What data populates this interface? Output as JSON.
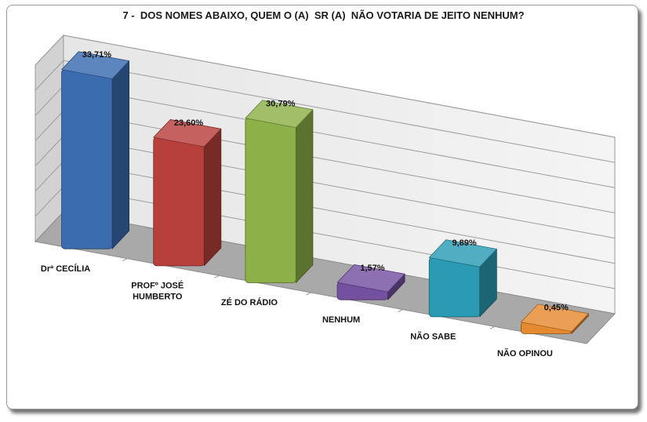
{
  "chart_data": {
    "type": "bar",
    "title": "7 -  DOS NOMES ABAIXO, QUEM O (A)  SR (A)  NÃO VOTARIA DE JEITO NENHUM?",
    "categories": [
      [
        "Drª CECÍLIA"
      ],
      [
        "PROFº JOSÉ",
        "HUMBERTO"
      ],
      [
        "ZÉ DO RÁDIO"
      ],
      [
        "NENHUM"
      ],
      [
        "NÃO SABE"
      ],
      [
        "NÃO OPINOU"
      ]
    ],
    "values": [
      33.71,
      23.6,
      30.79,
      1.57,
      9.89,
      0.45
    ],
    "data_labels": [
      "33,71%",
      "23,60%",
      "30,79%",
      "1,57%",
      "9,89%",
      "0,45%"
    ],
    "colors": [
      "#3b6cb0",
      "#b8403c",
      "#8db048",
      "#7451a0",
      "#2b9bb4",
      "#e58a30"
    ],
    "ylim": [
      0,
      35
    ],
    "grid": true,
    "legend": "none"
  }
}
